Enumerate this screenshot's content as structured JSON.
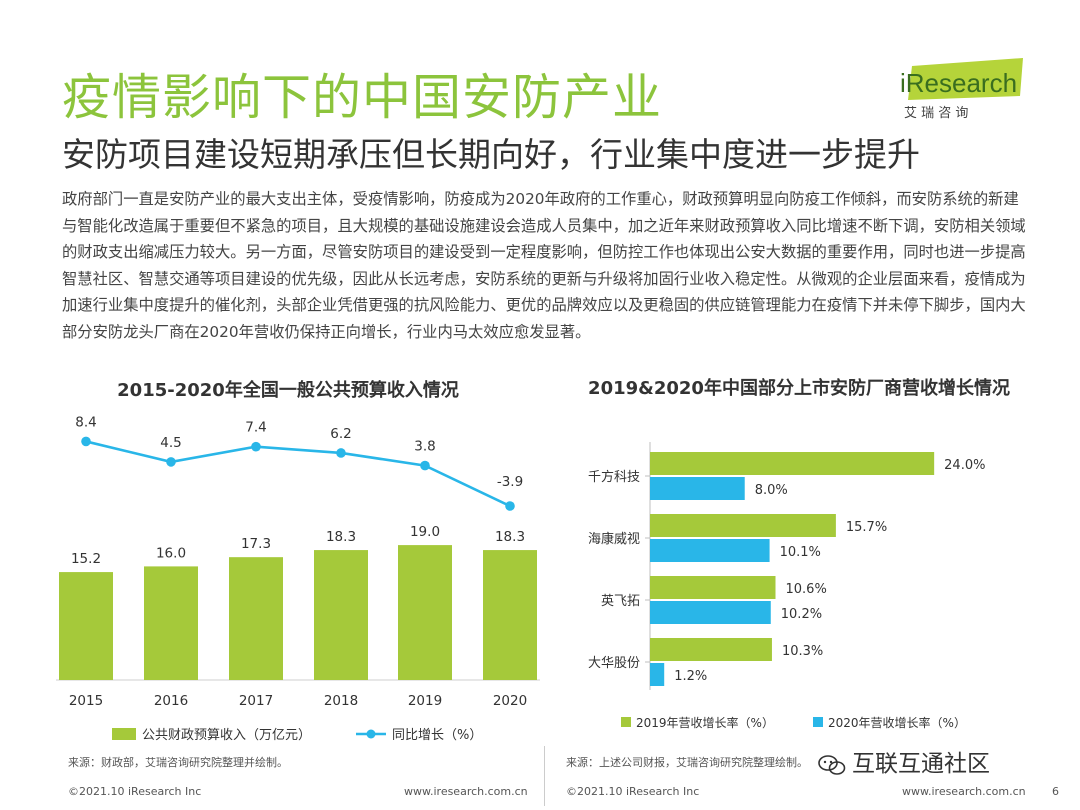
{
  "header": {
    "title": "疫情影响下的中国安防产业",
    "subtitle": "安防项目建设短期承压但长期向好，行业集中度进一步提升",
    "logo_text": "iResearch",
    "logo_sub": "艾 瑞 咨 询"
  },
  "body_text": "政府部门一直是安防产业的最大支出主体，受疫情影响，防疫成为2020年政府的工作重心，财政预算明显向防疫工作倾斜，而安防系统的新建与智能化改造属于重要但不紧急的项目，且大规模的基础设施建设会造成人员集中，加之近年来财政预算收入同比增速不断下调，安防相关领域的财政支出缩减压力较大。另一方面，尽管安防项目的建设受到一定程度影响，但防控工作也体现出公安大数据的重要作用，同时也进一步提高智慧社区、智慧交通等项目建设的优先级，因此从长远考虑，安防系统的更新与升级将加固行业收入稳定性。从微观的企业层面来看，疫情成为加速行业集中度提升的催化剂，头部企业凭借更强的抗风险能力、更优的品牌效应以及更稳固的供应链管理能力在疫情下并未停下脚步，国内大部分安防龙头厂商在2020年营收仍保持正向增长，行业内马太效应愈发显著。",
  "colors": {
    "green": "#a5c93a",
    "cyan": "#29b6e8",
    "title_green": "#8cc43c"
  },
  "chart_data": [
    {
      "type": "bar",
      "title": "2015-2020年全国一般公共预算收入情况",
      "categories": [
        "2015",
        "2016",
        "2017",
        "2018",
        "2019",
        "2020"
      ],
      "series": [
        {
          "name": "公共财政预算收入（万亿元）",
          "type": "bar",
          "values": [
            15.2,
            16.0,
            17.3,
            18.3,
            19.0,
            18.3
          ],
          "labels": [
            "15.2",
            "16.0",
            "17.3",
            "18.3",
            "19.0",
            "18.3"
          ]
        },
        {
          "name": "同比增长（%）",
          "type": "line",
          "values": [
            8.4,
            4.5,
            7.4,
            6.2,
            3.8,
            -3.9
          ],
          "labels": [
            "8.4",
            "4.5",
            "7.4",
            "6.2",
            "3.8",
            "-3.9"
          ]
        }
      ],
      "source": "来源：财政部，艾瑞咨询研究院整理并绘制。"
    },
    {
      "type": "bar",
      "orientation": "horizontal",
      "title": "2019&2020年中国部分上市安防厂商营收增长情况",
      "categories": [
        "千方科技",
        "海康威视",
        "英飞拓",
        "大华股份"
      ],
      "series": [
        {
          "name": "2019年营收增长率（%）",
          "values": [
            24.0,
            15.7,
            10.6,
            10.3
          ],
          "labels": [
            "24.0%",
            "15.7%",
            "10.6%",
            "10.3%"
          ]
        },
        {
          "name": "2020年营收增长率（%）",
          "values": [
            8.0,
            10.1,
            10.2,
            1.2
          ],
          "labels": [
            "8.0%",
            "10.1%",
            "10.2%",
            "1.2%"
          ]
        }
      ],
      "source": "来源：上述公司财报，艾瑞咨询研究院整理绘制。"
    }
  ],
  "footer": {
    "left_copyright": "©2021.10 iResearch Inc",
    "left_url": "www.iresearch.com.cn",
    "right_copyright": "©2021.10 iResearch Inc",
    "right_url": "www.iresearch.com.cn",
    "page_number": "6"
  },
  "watermark": "互联互通社区"
}
